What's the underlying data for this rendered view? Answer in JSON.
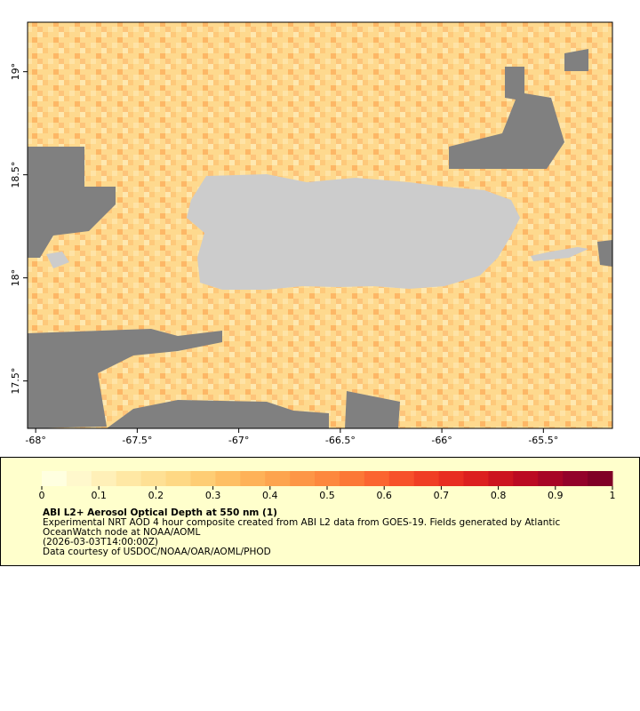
{
  "chart_data": {
    "type": "map",
    "xlim": [
      -68.04,
      -65.16
    ],
    "ylim": [
      17.27,
      19.24
    ],
    "xticks": [
      {
        "value": -68,
        "label": "-68°"
      },
      {
        "value": -67.5,
        "label": "-67.5°"
      },
      {
        "value": -67,
        "label": "-67°"
      },
      {
        "value": -66.5,
        "label": "-66.5°"
      },
      {
        "value": -66,
        "label": "-66°"
      },
      {
        "value": -65.5,
        "label": "-65.5°"
      }
    ],
    "yticks": [
      {
        "value": 17.5,
        "label": "17.5°"
      },
      {
        "value": 18,
        "label": "18°"
      },
      {
        "value": 18.5,
        "label": "18.5°"
      },
      {
        "value": 19,
        "label": "19°"
      }
    ],
    "colorbar": {
      "lim": [
        0,
        1
      ],
      "ticks": [
        0,
        0.1,
        0.2,
        0.3,
        0.4,
        0.5,
        0.6,
        0.7,
        0.8,
        0.9,
        1
      ],
      "colors": [
        "#ffffe0",
        "#fff8cc",
        "#fff0b8",
        "#ffe8a4",
        "#fee094",
        "#fed884",
        "#fecd74",
        "#febf64",
        "#feb258",
        "#fda44e",
        "#fd9646",
        "#fd883e",
        "#fc7836",
        "#fb6530",
        "#f7512a",
        "#f03e24",
        "#e82e21",
        "#dc201f",
        "#cc141f",
        "#bb0a22",
        "#a70526",
        "#93022a",
        "#800026"
      ],
      "title": "ABI L2+ Aerosol Optical Depth at 550 nm (1)",
      "description": [
        "Experimental NRT AOD 4 hour composite created from ABI L2 data from GOES-19. Fields generated by Atlantic",
        "OceanWatch node at NOAA/AOML",
        "(2026-03-03T14:00:00Z)",
        "Data courtesy of USDOC/NOAA/OAR/AOML/PHOD"
      ]
    }
  }
}
